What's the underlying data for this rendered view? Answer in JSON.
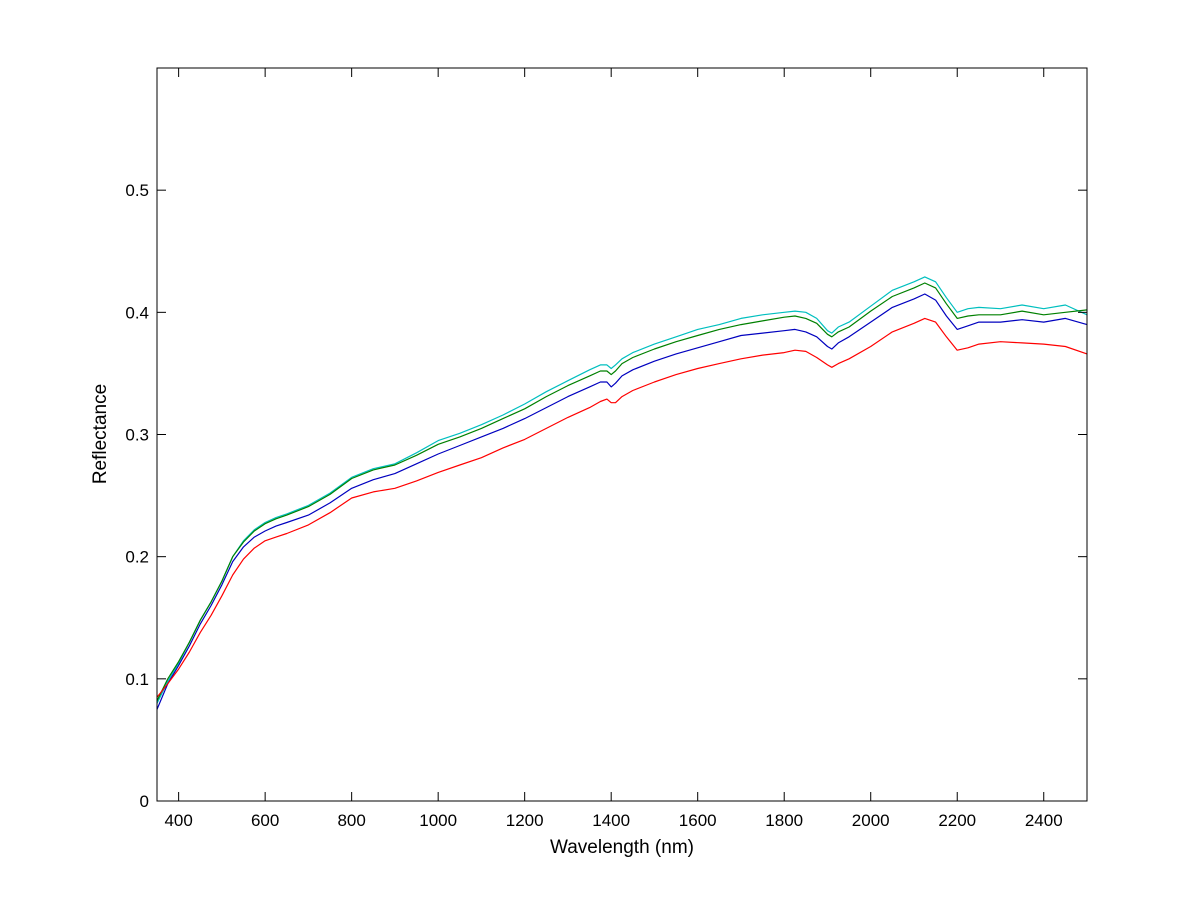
{
  "chart_data": {
    "type": "line",
    "title": "",
    "xlabel": "Wavelength (nm)",
    "ylabel": "Reflectance",
    "xlim": [
      350,
      2500
    ],
    "ylim": [
      0,
      0.6
    ],
    "x_ticks": [
      400,
      600,
      800,
      1000,
      1200,
      1400,
      1600,
      1800,
      2000,
      2200,
      2400
    ],
    "y_ticks": [
      0,
      0.1,
      0.2,
      0.3,
      0.4,
      0.5
    ],
    "y_tick_labels": [
      "0",
      "0.1",
      "0.2",
      "0.3",
      "0.4",
      "0.5"
    ],
    "grid": false,
    "legend": "none",
    "x": [
      350,
      375,
      400,
      425,
      450,
      475,
      500,
      525,
      550,
      575,
      600,
      625,
      650,
      700,
      750,
      800,
      850,
      900,
      950,
      1000,
      1050,
      1100,
      1150,
      1200,
      1250,
      1300,
      1350,
      1375,
      1390,
      1400,
      1410,
      1425,
      1450,
      1500,
      1550,
      1600,
      1650,
      1700,
      1750,
      1800,
      1825,
      1850,
      1875,
      1900,
      1910,
      1925,
      1950,
      2000,
      2050,
      2100,
      2125,
      2150,
      2175,
      2200,
      2225,
      2250,
      2300,
      2350,
      2400,
      2450,
      2500
    ],
    "series": [
      {
        "color": "#00bfbf",
        "values": [
          0.08,
          0.098,
          0.113,
          0.13,
          0.148,
          0.163,
          0.18,
          0.2,
          0.213,
          0.222,
          0.228,
          0.232,
          0.235,
          0.242,
          0.252,
          0.265,
          0.272,
          0.276,
          0.285,
          0.295,
          0.301,
          0.308,
          0.316,
          0.325,
          0.335,
          0.344,
          0.353,
          0.357,
          0.357,
          0.354,
          0.357,
          0.362,
          0.367,
          0.374,
          0.38,
          0.386,
          0.39,
          0.395,
          0.398,
          0.4,
          0.401,
          0.4,
          0.395,
          0.385,
          0.383,
          0.388,
          0.392,
          0.405,
          0.418,
          0.425,
          0.429,
          0.425,
          0.412,
          0.4,
          0.403,
          0.404,
          0.403,
          0.406,
          0.403,
          0.406,
          0.398
        ]
      },
      {
        "color": "#008000",
        "values": [
          0.082,
          0.1,
          0.114,
          0.13,
          0.148,
          0.163,
          0.18,
          0.2,
          0.212,
          0.221,
          0.227,
          0.231,
          0.234,
          0.241,
          0.251,
          0.264,
          0.271,
          0.275,
          0.283,
          0.292,
          0.298,
          0.305,
          0.313,
          0.321,
          0.331,
          0.34,
          0.348,
          0.352,
          0.352,
          0.349,
          0.352,
          0.358,
          0.363,
          0.37,
          0.376,
          0.381,
          0.386,
          0.39,
          0.393,
          0.396,
          0.397,
          0.395,
          0.391,
          0.382,
          0.38,
          0.384,
          0.388,
          0.401,
          0.413,
          0.42,
          0.424,
          0.42,
          0.407,
          0.395,
          0.397,
          0.398,
          0.398,
          0.401,
          0.398,
          0.4,
          0.402
        ]
      },
      {
        "color": "#0000bf",
        "values": [
          0.075,
          0.096,
          0.111,
          0.127,
          0.145,
          0.16,
          0.177,
          0.196,
          0.208,
          0.216,
          0.221,
          0.225,
          0.228,
          0.234,
          0.244,
          0.256,
          0.263,
          0.268,
          0.276,
          0.284,
          0.291,
          0.298,
          0.305,
          0.313,
          0.322,
          0.331,
          0.339,
          0.343,
          0.343,
          0.339,
          0.342,
          0.348,
          0.353,
          0.36,
          0.366,
          0.371,
          0.376,
          0.381,
          0.383,
          0.385,
          0.386,
          0.384,
          0.38,
          0.372,
          0.37,
          0.375,
          0.38,
          0.392,
          0.404,
          0.411,
          0.415,
          0.41,
          0.397,
          0.386,
          0.389,
          0.392,
          0.392,
          0.394,
          0.392,
          0.395,
          0.39
        ]
      },
      {
        "color": "#ff0000",
        "values": [
          0.085,
          0.096,
          0.108,
          0.122,
          0.138,
          0.152,
          0.168,
          0.185,
          0.198,
          0.207,
          0.213,
          0.216,
          0.219,
          0.226,
          0.236,
          0.248,
          0.253,
          0.256,
          0.262,
          0.269,
          0.275,
          0.281,
          0.289,
          0.296,
          0.305,
          0.314,
          0.322,
          0.327,
          0.329,
          0.326,
          0.326,
          0.331,
          0.336,
          0.343,
          0.349,
          0.354,
          0.358,
          0.362,
          0.365,
          0.367,
          0.369,
          0.368,
          0.363,
          0.357,
          0.355,
          0.358,
          0.362,
          0.372,
          0.384,
          0.391,
          0.395,
          0.392,
          0.38,
          0.369,
          0.371,
          0.374,
          0.376,
          0.375,
          0.374,
          0.372,
          0.366
        ]
      }
    ]
  }
}
